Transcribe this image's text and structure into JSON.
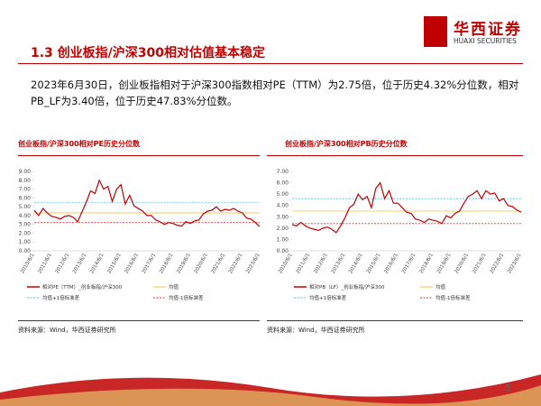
{
  "header": {
    "title": "1.3 创业板指/沪深300相对估值基本稳定",
    "logo_cn": "华西证券",
    "logo_en": "HUAXI SECURITIES"
  },
  "summary": "2023年6月30日，创业板指相对于沪深300指数相对PE（TTM）为2.75倍，位于历史4.32%分位数，相对PB_LF为3.40倍，位于历史47.83%分位数。",
  "page_number": "5",
  "chart_data": [
    {
      "type": "line",
      "title": "创业板指/沪深300相对PE历史分位数",
      "source": "资料来源：Wind，华西证券研究所",
      "categories": [
        "2010/6/1",
        null,
        null,
        null,
        "2011/6/1",
        null,
        null,
        null,
        "2012/6/1",
        null,
        null,
        null,
        "2013/6/1",
        null,
        null,
        null,
        "2014/6/1",
        null,
        null,
        null,
        "2015/6/1",
        null,
        null,
        null,
        "2016/6/1",
        null,
        null,
        null,
        "2017/6/1",
        null,
        null,
        null,
        "2018/6/1",
        null,
        null,
        null,
        "2019/6/1",
        null,
        null,
        null,
        "2020/6/1",
        null,
        null,
        null,
        "2021/6/1",
        null,
        null,
        null,
        "2022/6/1",
        null,
        null,
        null,
        "2023/6/1"
      ],
      "series": [
        {
          "name": "相对PE（TTM）_创业板指/沪深300",
          "color": "#c00000",
          "values": [
            4.6,
            4.0,
            4.8,
            4.3,
            3.9,
            3.8,
            3.6,
            3.9,
            4.0,
            3.8,
            3.3,
            4.4,
            5.5,
            6.8,
            6.5,
            8.0,
            7.0,
            7.3,
            5.6,
            7.0,
            7.5,
            5.3,
            6.3,
            5.1,
            4.8,
            4.5,
            4.0,
            4.0,
            3.5,
            3.3,
            3.0,
            3.2,
            3.1,
            2.9,
            2.8,
            3.3,
            3.1,
            3.4,
            3.5,
            4.2,
            4.5,
            4.6,
            5.0,
            4.5,
            4.7,
            4.6,
            4.8,
            4.5,
            4.3,
            3.7,
            3.6,
            3.2,
            2.75
          ]
        }
      ],
      "hlines": [
        {
          "name": "均值",
          "color": "#f5c242",
          "value": 4.3,
          "dashed": false
        },
        {
          "name": "均值+1倍标准差",
          "color": "#4bc0d9",
          "value": 5.5,
          "dashed": true
        },
        {
          "name": "均值-1倍标准差",
          "color": "#e03030",
          "value": 3.2,
          "dashed": true
        }
      ],
      "ylim": [
        0,
        9
      ],
      "yticks": [
        {
          "value": 0,
          "label": "0.00"
        },
        {
          "value": 1,
          "label": "1.00"
        },
        {
          "value": 2,
          "label": "2.00"
        },
        {
          "value": 3,
          "label": "3.00"
        },
        {
          "value": 4,
          "label": "4.00"
        },
        {
          "value": 5,
          "label": "5.00"
        },
        {
          "value": 6,
          "label": "6.00"
        },
        {
          "value": 7,
          "label": "7.00"
        },
        {
          "value": 8,
          "label": "8.00"
        },
        {
          "value": 9,
          "label": "9.00"
        }
      ]
    },
    {
      "type": "line",
      "title": "创业板指/沪深300相对PB历史分位数",
      "source": "资料来源：Wind，华西证券研究所",
      "categories": [
        "2010/6/1",
        null,
        null,
        null,
        "2011/6/1",
        null,
        null,
        null,
        "2012/6/1",
        null,
        null,
        null,
        "2013/6/1",
        null,
        null,
        null,
        "2014/6/1",
        null,
        null,
        null,
        "2015/6/1",
        null,
        null,
        null,
        "2016/6/1",
        null,
        null,
        null,
        "2017/6/1",
        null,
        null,
        null,
        "2018/6/1",
        null,
        null,
        null,
        "2019/6/1",
        null,
        null,
        null,
        "2020/6/1",
        null,
        null,
        null,
        "2021/6/1",
        null,
        null,
        null,
        "2022/6/1",
        null,
        null,
        null,
        "2023/6/1"
      ],
      "series": [
        {
          "name": "相对PB（LF）_创业板指/沪深300",
          "color": "#c00000",
          "values": [
            2.3,
            2.2,
            2.5,
            2.2,
            2.0,
            1.9,
            1.8,
            2.0,
            2.1,
            1.9,
            1.6,
            2.2,
            2.9,
            3.8,
            4.1,
            5.0,
            4.5,
            4.8,
            3.8,
            5.5,
            6.0,
            4.6,
            5.3,
            4.2,
            4.2,
            3.8,
            3.4,
            3.3,
            2.8,
            2.7,
            2.5,
            2.8,
            2.7,
            2.6,
            2.4,
            3.1,
            2.9,
            3.3,
            3.5,
            4.2,
            4.8,
            5.0,
            5.3,
            4.6,
            5.3,
            5.0,
            5.1,
            4.4,
            4.6,
            4.0,
            3.9,
            3.6,
            3.4
          ]
        }
      ],
      "hlines": [
        {
          "name": "均值",
          "color": "#f5c242",
          "value": 3.5,
          "dashed": false
        },
        {
          "name": "均值+1倍标准差",
          "color": "#4bc0d9",
          "value": 4.6,
          "dashed": true
        },
        {
          "name": "均值-1倍标准差",
          "color": "#e03030",
          "value": 2.4,
          "dashed": true
        }
      ],
      "ylim": [
        0,
        7
      ],
      "yticks": [
        {
          "value": 0,
          "label": "0.00"
        },
        {
          "value": 1,
          "label": "1.00"
        },
        {
          "value": 2,
          "label": "2.00"
        },
        {
          "value": 3,
          "label": "3.00"
        },
        {
          "value": 4,
          "label": "4.00"
        },
        {
          "value": 5,
          "label": "5.00"
        },
        {
          "value": 6,
          "label": "6.00"
        },
        {
          "value": 7,
          "label": "7.00"
        }
      ]
    }
  ]
}
